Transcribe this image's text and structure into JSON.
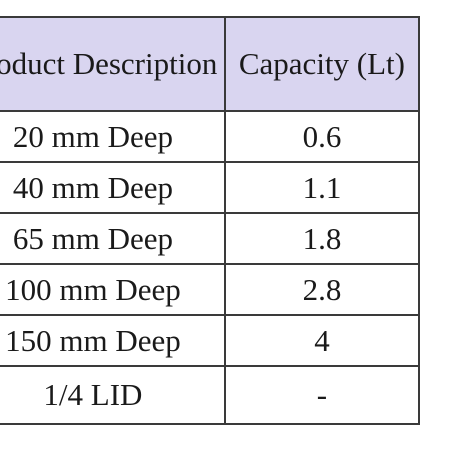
{
  "table": {
    "headers": [
      "Product Description",
      "Capacity (Lt)"
    ],
    "rows": [
      {
        "description": "20 mm Deep",
        "capacity": "0.6"
      },
      {
        "description": "40 mm Deep",
        "capacity": "1.1"
      },
      {
        "description": "65 mm Deep",
        "capacity": "1.8"
      },
      {
        "description": "100 mm Deep",
        "capacity": "2.8"
      },
      {
        "description": "150 mm Deep",
        "capacity": "4"
      },
      {
        "description": "1/4 LID",
        "capacity": "-"
      }
    ],
    "colors": {
      "header_bg": "#d9d5f0",
      "border": "#3a3a3a",
      "text": "#1a1a1a"
    }
  }
}
